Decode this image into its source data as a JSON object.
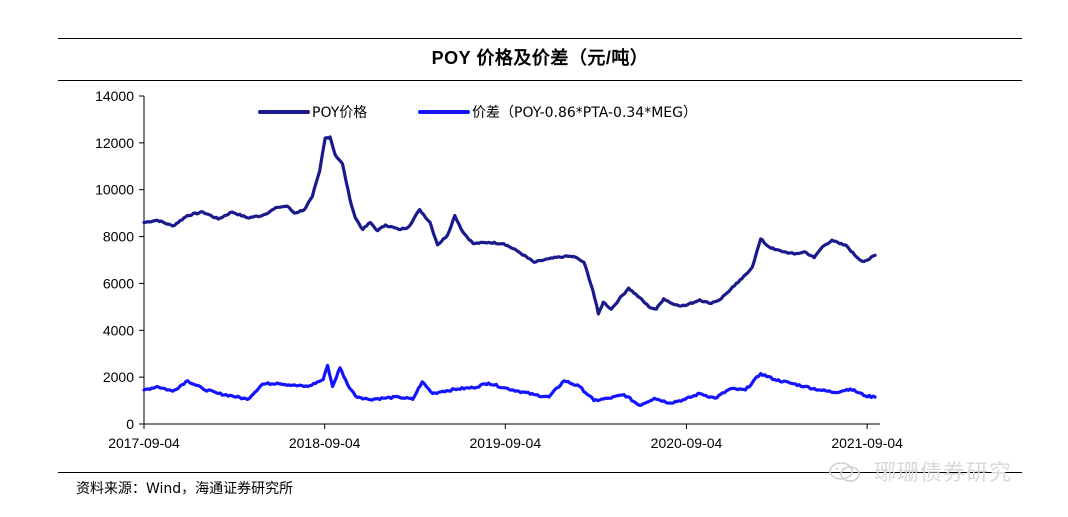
{
  "header": {
    "title": "POY 价格及价差（元/吨）"
  },
  "footer": {
    "source": "资料来源：Wind，海通证券研究所",
    "watermark": "琊珊债券研究"
  },
  "colors": {
    "series_1": "#1a1a8c",
    "series_2": "#1414ff",
    "axis": "#000000"
  },
  "chart_data": {
    "type": "line",
    "title": "POY 价格及价差（元/吨）",
    "xlabel": "",
    "ylabel": "",
    "ylim": [
      0,
      14000
    ],
    "yticks": [
      0,
      2000,
      4000,
      6000,
      8000,
      10000,
      12000,
      14000
    ],
    "xlim": [
      "2017-09-04",
      "2021-09-30"
    ],
    "xticks": [
      "2017-09-04",
      "2018-09-04",
      "2019-09-04",
      "2020-09-04",
      "2021-09-04"
    ],
    "grid": false,
    "legend_position": "top",
    "series": [
      {
        "name": "POY价格",
        "color": "#1a1a8c",
        "points": [
          [
            "2017-09-04",
            8600
          ],
          [
            "2017-10-01",
            8700
          ],
          [
            "2017-11-01",
            8450
          ],
          [
            "2017-12-01",
            8900
          ],
          [
            "2018-01-01",
            9050
          ],
          [
            "2018-02-01",
            8750
          ],
          [
            "2018-03-01",
            9050
          ],
          [
            "2018-04-01",
            8800
          ],
          [
            "2018-05-01",
            8900
          ],
          [
            "2018-06-01",
            9250
          ],
          [
            "2018-06-20",
            9300
          ],
          [
            "2018-07-05",
            9000
          ],
          [
            "2018-07-25",
            9150
          ],
          [
            "2018-08-10",
            9700
          ],
          [
            "2018-08-25",
            10800
          ],
          [
            "2018-09-05",
            12200
          ],
          [
            "2018-09-15",
            12250
          ],
          [
            "2018-09-25",
            11500
          ],
          [
            "2018-10-10",
            11100
          ],
          [
            "2018-10-25",
            9600
          ],
          [
            "2018-11-05",
            8800
          ],
          [
            "2018-11-20",
            8300
          ],
          [
            "2018-12-05",
            8600
          ],
          [
            "2018-12-20",
            8250
          ],
          [
            "2019-01-05",
            8500
          ],
          [
            "2019-02-01",
            8300
          ],
          [
            "2019-02-20",
            8400
          ],
          [
            "2019-03-15",
            9150
          ],
          [
            "2019-04-05",
            8600
          ],
          [
            "2019-04-20",
            7650
          ],
          [
            "2019-05-10",
            8050
          ],
          [
            "2019-05-25",
            8900
          ],
          [
            "2019-06-10",
            8200
          ],
          [
            "2019-07-01",
            7700
          ],
          [
            "2019-08-01",
            7750
          ],
          [
            "2019-09-01",
            7700
          ],
          [
            "2019-10-01",
            7350
          ],
          [
            "2019-11-01",
            6900
          ],
          [
            "2019-12-01",
            7050
          ],
          [
            "2020-01-01",
            7150
          ],
          [
            "2020-01-20",
            7150
          ],
          [
            "2020-02-10",
            6900
          ],
          [
            "2020-02-28",
            5700
          ],
          [
            "2020-03-10",
            4700
          ],
          [
            "2020-03-20",
            5200
          ],
          [
            "2020-04-05",
            4900
          ],
          [
            "2020-04-20",
            5300
          ],
          [
            "2020-05-10",
            5800
          ],
          [
            "2020-06-01",
            5400
          ],
          [
            "2020-06-20",
            5000
          ],
          [
            "2020-07-05",
            4900
          ],
          [
            "2020-07-20",
            5350
          ],
          [
            "2020-08-10",
            5100
          ],
          [
            "2020-09-01",
            5050
          ],
          [
            "2020-10-01",
            5300
          ],
          [
            "2020-10-20",
            5150
          ],
          [
            "2020-11-10",
            5300
          ],
          [
            "2020-11-25",
            5600
          ],
          [
            "2020-12-10",
            5900
          ],
          [
            "2020-12-25",
            6200
          ],
          [
            "2021-01-15",
            6700
          ],
          [
            "2021-02-01",
            7900
          ],
          [
            "2021-02-15",
            7600
          ],
          [
            "2021-03-01",
            7450
          ],
          [
            "2021-03-20",
            7350
          ],
          [
            "2021-04-10",
            7250
          ],
          [
            "2021-05-01",
            7350
          ],
          [
            "2021-05-20",
            7100
          ],
          [
            "2021-06-05",
            7550
          ],
          [
            "2021-06-25",
            7850
          ],
          [
            "2021-07-10",
            7700
          ],
          [
            "2021-07-25",
            7600
          ],
          [
            "2021-08-10",
            7200
          ],
          [
            "2021-08-25",
            6950
          ],
          [
            "2021-09-05",
            7000
          ],
          [
            "2021-09-20",
            7200
          ]
        ]
      },
      {
        "name": "价差（POY-0.86*PTA-0.34*MEG）",
        "color": "#1414ff",
        "points": [
          [
            "2017-09-04",
            1450
          ],
          [
            "2017-10-01",
            1600
          ],
          [
            "2017-11-01",
            1400
          ],
          [
            "2017-12-01",
            1850
          ],
          [
            "2018-01-01",
            1500
          ],
          [
            "2018-02-01",
            1300
          ],
          [
            "2018-03-01",
            1200
          ],
          [
            "2018-04-01",
            1050
          ],
          [
            "2018-05-01",
            1700
          ],
          [
            "2018-06-01",
            1750
          ],
          [
            "2018-07-01",
            1650
          ],
          [
            "2018-08-01",
            1600
          ],
          [
            "2018-09-01",
            1900
          ],
          [
            "2018-09-10",
            2500
          ],
          [
            "2018-09-20",
            1600
          ],
          [
            "2018-10-05",
            2400
          ],
          [
            "2018-10-20",
            1700
          ],
          [
            "2018-11-05",
            1200
          ],
          [
            "2018-12-01",
            1050
          ],
          [
            "2019-01-01",
            1100
          ],
          [
            "2019-02-01",
            1150
          ],
          [
            "2019-03-01",
            1050
          ],
          [
            "2019-03-20",
            1800
          ],
          [
            "2019-04-10",
            1300
          ],
          [
            "2019-05-01",
            1400
          ],
          [
            "2019-06-01",
            1500
          ],
          [
            "2019-07-01",
            1550
          ],
          [
            "2019-08-01",
            1750
          ],
          [
            "2019-09-01",
            1550
          ],
          [
            "2019-10-01",
            1400
          ],
          [
            "2019-11-01",
            1250
          ],
          [
            "2019-12-01",
            1150
          ],
          [
            "2020-01-01",
            1850
          ],
          [
            "2020-02-01",
            1600
          ],
          [
            "2020-03-01",
            1000
          ],
          [
            "2020-04-01",
            1100
          ],
          [
            "2020-05-01",
            1250
          ],
          [
            "2020-06-01",
            800
          ],
          [
            "2020-07-01",
            1100
          ],
          [
            "2020-08-01",
            900
          ],
          [
            "2020-09-01",
            1050
          ],
          [
            "2020-10-01",
            1300
          ],
          [
            "2020-11-01",
            1100
          ],
          [
            "2020-12-01",
            1500
          ],
          [
            "2021-01-01",
            1450
          ],
          [
            "2021-02-01",
            2150
          ],
          [
            "2021-03-01",
            1900
          ],
          [
            "2021-04-01",
            1750
          ],
          [
            "2021-05-01",
            1600
          ],
          [
            "2021-06-01",
            1450
          ],
          [
            "2021-07-01",
            1350
          ],
          [
            "2021-08-01",
            1500
          ],
          [
            "2021-09-01",
            1200
          ],
          [
            "2021-09-20",
            1150
          ]
        ]
      }
    ]
  }
}
